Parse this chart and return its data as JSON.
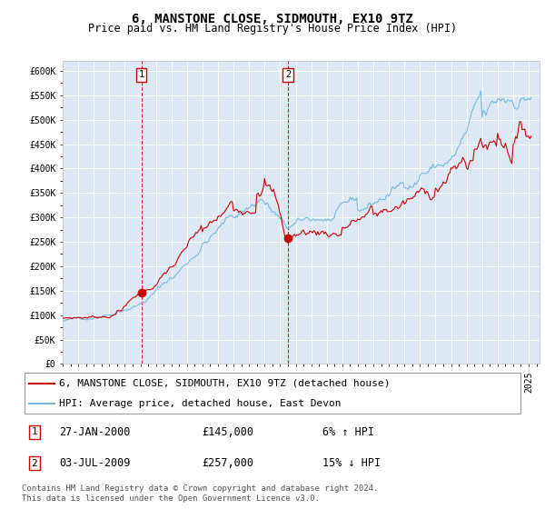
{
  "title": "6, MANSTONE CLOSE, SIDMOUTH, EX10 9TZ",
  "subtitle": "Price paid vs. HM Land Registry's House Price Index (HPI)",
  "ylim": [
    0,
    620000
  ],
  "yticks": [
    0,
    50000,
    100000,
    150000,
    200000,
    250000,
    300000,
    350000,
    400000,
    450000,
    500000,
    550000,
    600000
  ],
  "ytick_labels": [
    "£0",
    "£50K",
    "£100K",
    "£150K",
    "£200K",
    "£250K",
    "£300K",
    "£350K",
    "£400K",
    "£450K",
    "£500K",
    "£550K",
    "£600K"
  ],
  "xlim_start": 1995.0,
  "xlim_end": 2025.7,
  "plot_bg_color": "#dce9f5",
  "grid_color": "#ffffff",
  "sale1_x": 2000.07,
  "sale1_y": 145000,
  "sale2_x": 2009.5,
  "sale2_y": 257000,
  "hpi_line_color": "#7ab8d9",
  "price_line_color": "#cc0000",
  "marker_color": "#cc0000",
  "legend_house_label": "6, MANSTONE CLOSE, SIDMOUTH, EX10 9TZ (detached house)",
  "legend_hpi_label": "HPI: Average price, detached house, East Devon",
  "annotation1_date": "27-JAN-2000",
  "annotation1_price": "£145,000",
  "annotation1_hpi": "6% ↑ HPI",
  "annotation2_date": "03-JUL-2009",
  "annotation2_price": "£257,000",
  "annotation2_hpi": "15% ↓ HPI",
  "footer": "Contains HM Land Registry data © Crown copyright and database right 2024.\nThis data is licensed under the Open Government Licence v3.0.",
  "title_fontsize": 10,
  "subtitle_fontsize": 8.5,
  "tick_fontsize": 7,
  "legend_fontsize": 8,
  "annotation_fontsize": 8.5,
  "footer_fontsize": 6.5
}
